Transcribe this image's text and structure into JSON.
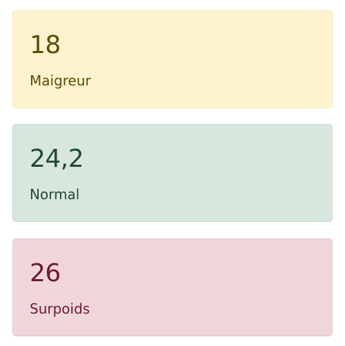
{
  "cards": [
    {
      "value": "18",
      "label": "Maigreur",
      "status": "warning",
      "color": "#fdf3cf"
    },
    {
      "value": "24,2",
      "label": "Normal",
      "status": "success",
      "color": "#d7e7de"
    },
    {
      "value": "26",
      "label": "Surpoids",
      "status": "danger",
      "color": "#f0d6da"
    }
  ]
}
